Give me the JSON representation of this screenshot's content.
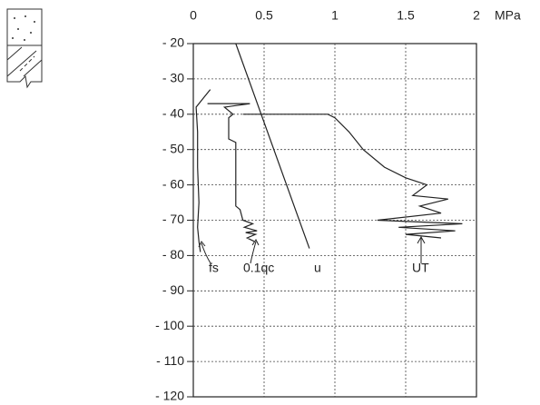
{
  "chart_data": {
    "type": "line",
    "x_label": "MPa",
    "xlim": [
      0,
      2
    ],
    "xticks": [
      0,
      0.5,
      1,
      1.5,
      2
    ],
    "ylim": [
      -20,
      -120
    ],
    "yticks": [
      {
        "value": -20,
        "label": "- 20"
      },
      {
        "value": -30,
        "label": "- 30"
      },
      {
        "value": -40,
        "label": "- 40"
      },
      {
        "value": -50,
        "label": "- 50"
      },
      {
        "value": -60,
        "label": "- 60"
      },
      {
        "value": -70,
        "label": "- 70"
      },
      {
        "value": -80,
        "label": "- 80"
      },
      {
        "value": -90,
        "label": "- 90"
      },
      {
        "value": -100,
        "label": "- 100"
      },
      {
        "value": -110,
        "label": "- 110"
      },
      {
        "value": -120,
        "label": "- 120"
      }
    ],
    "grid": true,
    "series": [
      {
        "name": "fs",
        "color": "#222",
        "x": [
          0.12,
          0.08,
          0.02,
          0.03,
          0.03,
          0.04,
          0.03,
          0.04,
          0.05
        ],
        "y": [
          -33,
          -35,
          -38,
          -45,
          -55,
          -65,
          -72,
          -76,
          -79
        ]
      },
      {
        "name": "0.1qc",
        "color": "#222",
        "x": [
          0.1,
          0.4,
          0.22,
          0.28,
          0.25,
          0.25,
          0.3,
          0.3,
          0.33,
          0.35,
          0.42,
          0.36,
          0.45,
          0.37,
          0.44,
          0.38,
          0.43
        ],
        "y": [
          -37,
          -37,
          -38,
          -40,
          -41,
          -47,
          -48,
          -66,
          -67,
          -70,
          -71,
          -72,
          -73,
          -73.5,
          -74,
          -75,
          -76
        ]
      },
      {
        "name": "u",
        "color": "#222",
        "x": [
          0.3,
          0.82
        ],
        "y": [
          -20,
          -78
        ]
      },
      {
        "name": "UT",
        "color": "#222",
        "x": [
          0.35,
          0.95,
          1.0,
          1.1,
          1.2,
          1.35,
          1.5,
          1.65,
          1.55,
          1.8,
          1.6,
          1.75,
          1.3,
          1.9,
          1.45,
          1.85,
          1.5,
          1.75
        ],
        "y": [
          -40,
          -40,
          -41,
          -45,
          -50,
          -55,
          -58,
          -60,
          -63,
          -64,
          -66,
          -68,
          -70,
          -71,
          -72,
          -73,
          -74,
          -75
        ]
      }
    ]
  }
}
